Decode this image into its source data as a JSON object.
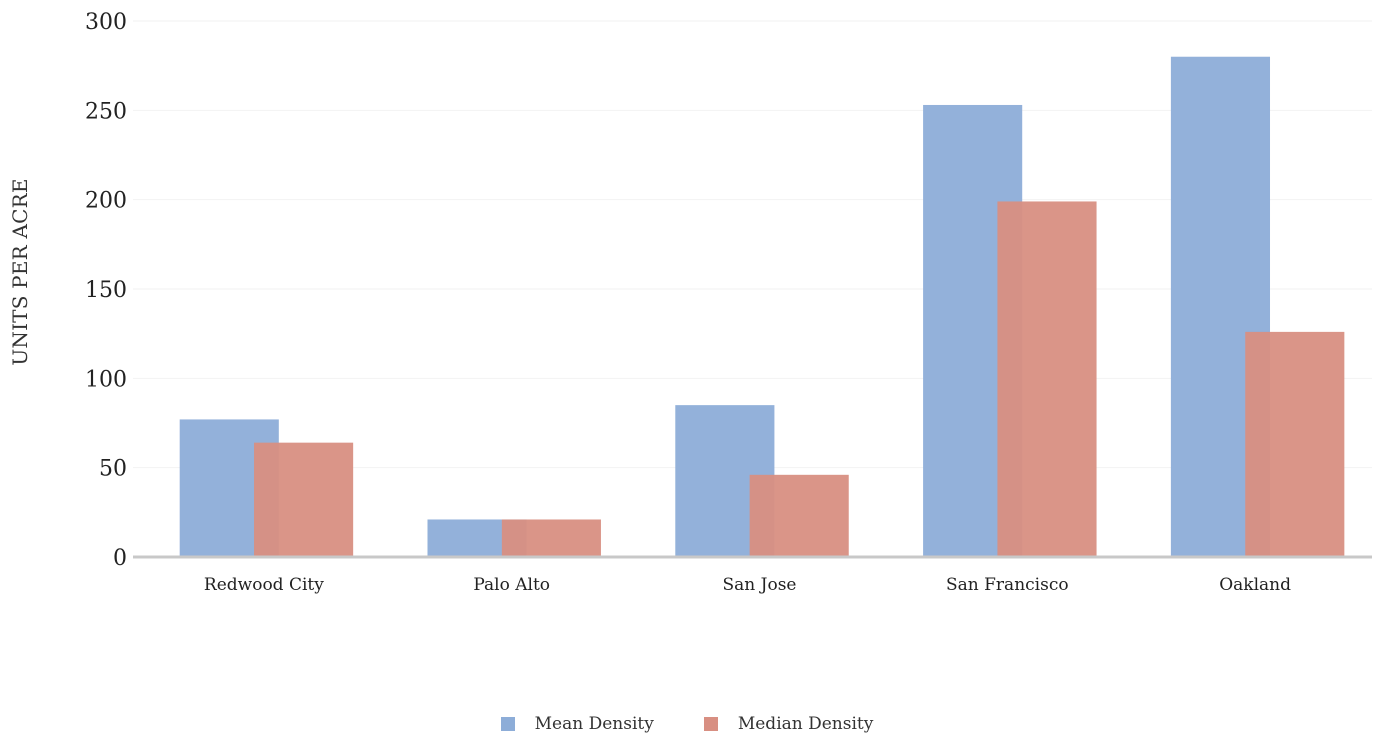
{
  "chart_data": {
    "type": "bar",
    "categories": [
      "Redwood City",
      "Palo Alto",
      "San Jose",
      "San Francisco",
      "Oakland"
    ],
    "series": [
      {
        "name": "Mean Density",
        "values": [
          77,
          21,
          85,
          253,
          280
        ],
        "color": "#8DADD8"
      },
      {
        "name": "Median Density",
        "values": [
          64,
          21,
          46,
          199,
          126
        ],
        "color": "#D88F82"
      }
    ],
    "ylabel": "UNITS PER ACRE",
    "xlabel": "",
    "ylim": [
      0,
      300
    ],
    "yticks": [
      0,
      50,
      100,
      150,
      200,
      250,
      300
    ],
    "grid": true,
    "legend_position": "bottom-center"
  }
}
